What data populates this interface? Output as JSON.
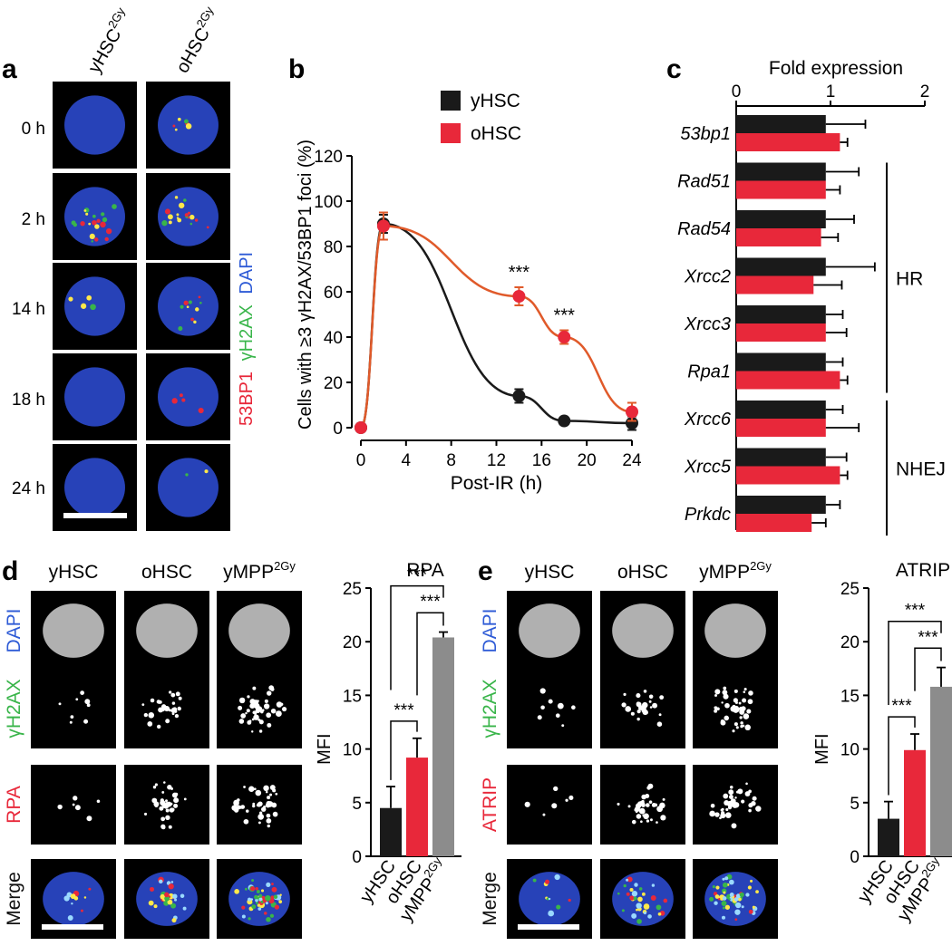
{
  "panel_letters": {
    "a": "a",
    "b": "b",
    "c": "c",
    "d": "d",
    "e": "e"
  },
  "panel_a": {
    "columns": [
      {
        "base": "yHSC",
        "sup": "2Gy"
      },
      {
        "base": "oHSC",
        "sup": "2Gy"
      }
    ],
    "rows": [
      "0 h",
      "2 h",
      "14 h",
      "18 h",
      "24 h"
    ],
    "stain_labels": [
      {
        "text": "53BP1",
        "color": "#e8283a"
      },
      {
        "text": "γH2AX",
        "color": "#39b54a"
      },
      {
        "text": "DAPI",
        "color": "#2e5bd6"
      }
    ]
  },
  "panel_d_e_rows": {
    "dapi": {
      "text": "DAPI",
      "color": "#2e5bd6"
    },
    "gh2ax": {
      "text": "γH2AX",
      "color": "#39b54a"
    },
    "merge": {
      "text": "Merge",
      "color": "#111111"
    },
    "d_third": {
      "text": "RPA",
      "color": "#e8283a"
    },
    "e_third": {
      "text": "ATRIP",
      "color": "#e8283a"
    }
  },
  "panel_d_columns": [
    "yHSC",
    "oHSC",
    {
      "base": "yMPP",
      "sup": "2Gy"
    }
  ],
  "panel_e_columns": [
    "yHSC",
    "oHSC",
    {
      "base": "yMPP",
      "sup": "2Gy"
    }
  ],
  "colors": {
    "yHSC": "#1a1a1a",
    "oHSC": "#e8283a",
    "oHSC_line": "#e05a2a",
    "yMPP": "#8c8c8c",
    "nucleus": "#2742b8"
  },
  "chart_data": [
    {
      "panel": "b",
      "type": "line",
      "title": "",
      "xlabel": "Post-IR (h)",
      "ylabel": "Cells with ≥3 γH2AX/53BP1 foci (%)",
      "xlim": [
        0,
        24
      ],
      "ylim": [
        0,
        120
      ],
      "xticks": [
        0,
        4,
        8,
        12,
        16,
        20,
        24
      ],
      "yticks": [
        0,
        20,
        40,
        60,
        80,
        100,
        120
      ],
      "legend_position": "top-right",
      "series": [
        {
          "name": "yHSC",
          "x": [
            0,
            2,
            14,
            18,
            24
          ],
          "y": [
            0,
            90,
            14,
            3,
            2
          ],
          "err": [
            0,
            4,
            3,
            1,
            3
          ]
        },
        {
          "name": "oHSC",
          "x": [
            0,
            2,
            14,
            18,
            24
          ],
          "y": [
            0,
            89,
            58,
            40,
            7
          ],
          "err": [
            0,
            6,
            4,
            3,
            4
          ]
        }
      ],
      "annotations": [
        {
          "text": "***",
          "x": 14,
          "y": 66
        },
        {
          "text": "***",
          "x": 18,
          "y": 47
        }
      ]
    },
    {
      "panel": "c",
      "type": "bar",
      "orientation": "horizontal",
      "title": "",
      "xlabel": "Fold expression",
      "xlim": [
        0,
        2
      ],
      "xticks": [
        0,
        1,
        2
      ],
      "categories": [
        "53bp1",
        "Rad51",
        "Rad54",
        "Xrcc2",
        "Xrcc3",
        "Rpa1",
        "Xrcc6",
        "Xrcc5",
        "Prkdc"
      ],
      "series": [
        {
          "name": "yHSC",
          "values": [
            0.95,
            0.95,
            0.95,
            0.95,
            0.95,
            0.95,
            0.95,
            0.95,
            0.95
          ],
          "err": [
            0.42,
            0.35,
            0.3,
            0.52,
            0.18,
            0.18,
            0.18,
            0.22,
            0.15
          ]
        },
        {
          "name": "oHSC",
          "values": [
            1.1,
            0.95,
            0.9,
            0.82,
            0.95,
            1.1,
            0.95,
            1.1,
            0.8
          ],
          "err": [
            0.08,
            0.15,
            0.18,
            0.3,
            0.22,
            0.08,
            0.35,
            0.08,
            0.15
          ]
        }
      ],
      "groups": [
        {
          "label": "HR",
          "from": "Rad51",
          "to": "Rpa1"
        },
        {
          "label": "NHEJ",
          "from": "Xrcc6",
          "to": "Prkdc"
        }
      ]
    },
    {
      "panel": "d",
      "type": "bar",
      "title": "RPA",
      "ylabel": "MFI",
      "ylim": [
        0,
        25
      ],
      "yticks": [
        0,
        5,
        10,
        15,
        20,
        25
      ],
      "categories": [
        "yHSC",
        "oHSC",
        "yMPP2Gy"
      ],
      "values": [
        4.5,
        9.2,
        20.4
      ],
      "err": [
        2.0,
        1.8,
        0.5
      ],
      "significance": [
        {
          "pair": [
            "yHSC",
            "oHSC"
          ],
          "text": "***"
        },
        {
          "pair": [
            "oHSC",
            "yMPP2Gy"
          ],
          "text": "***"
        },
        {
          "pair": [
            "yHSC",
            "yMPP2Gy"
          ],
          "text": "***"
        }
      ]
    },
    {
      "panel": "e",
      "type": "bar",
      "title": "ATRIP",
      "ylabel": "MFI",
      "ylim": [
        0,
        25
      ],
      "yticks": [
        0,
        5,
        10,
        15,
        20,
        25
      ],
      "categories": [
        "yHSC",
        "oHSC",
        "yMPP2Gy"
      ],
      "values": [
        3.5,
        9.9,
        15.8
      ],
      "err": [
        1.6,
        1.5,
        1.8
      ],
      "significance": [
        {
          "pair": [
            "yHSC",
            "oHSC"
          ],
          "text": "***"
        },
        {
          "pair": [
            "oHSC",
            "yMPP2Gy"
          ],
          "text": "***"
        },
        {
          "pair": [
            "yHSC",
            "yMPP2Gy"
          ],
          "text": "***"
        }
      ]
    }
  ]
}
